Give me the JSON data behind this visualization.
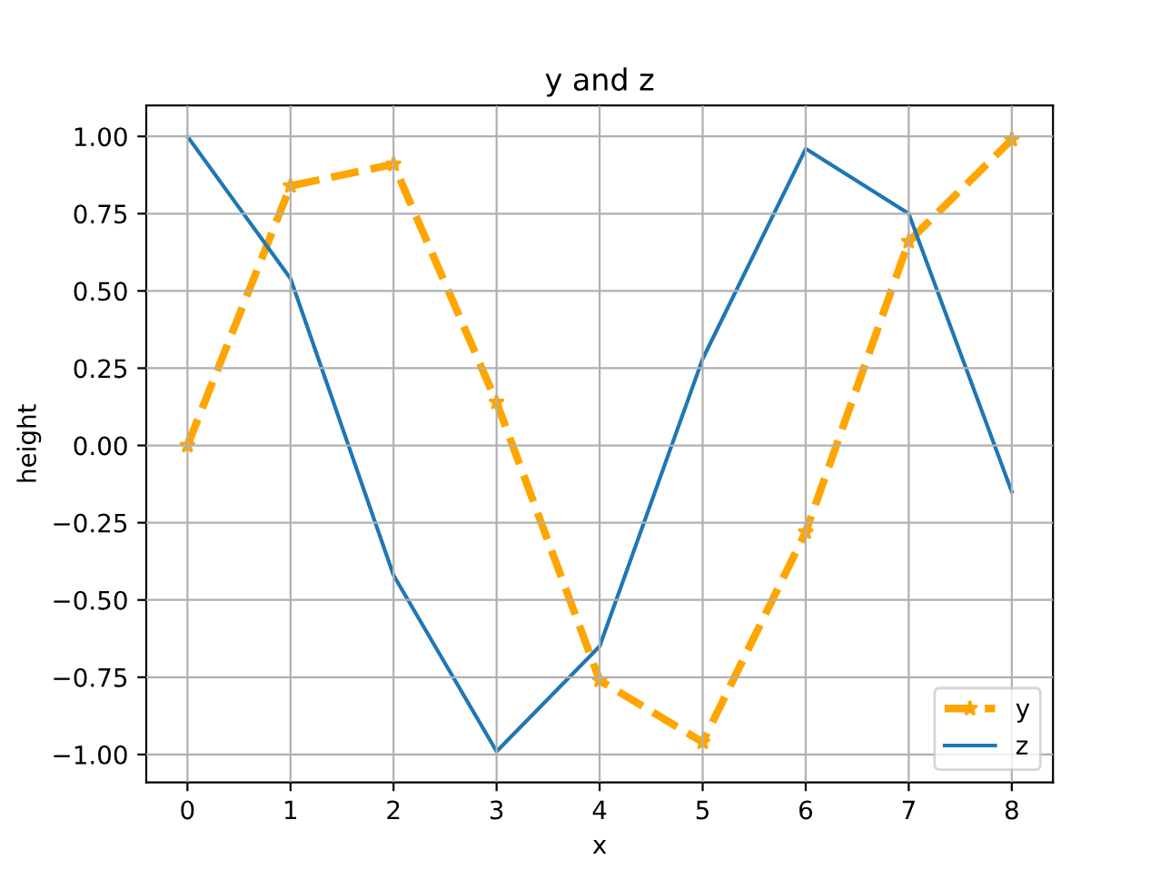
{
  "chart_data": {
    "type": "line",
    "title": "y and z",
    "xlabel": "x",
    "ylabel": "height",
    "x": [
      0,
      1,
      2,
      3,
      4,
      5,
      6,
      7,
      8
    ],
    "series": [
      {
        "name": "y",
        "color": "#ffa500",
        "marker": "star",
        "line_style": "dashed",
        "values": [
          0.0,
          0.84,
          0.91,
          0.14,
          -0.76,
          -0.96,
          -0.28,
          0.66,
          0.99
        ]
      },
      {
        "name": "z",
        "color": "#1f77b4",
        "marker": "none",
        "line_style": "solid",
        "values": [
          1.0,
          0.54,
          -0.42,
          -0.99,
          -0.65,
          0.28,
          0.96,
          0.75,
          -0.15
        ]
      }
    ],
    "xlim": [
      -0.4,
      8.4
    ],
    "ylim": [
      -1.09,
      1.1
    ],
    "xticks": [
      0,
      1,
      2,
      3,
      4,
      5,
      6,
      7,
      8
    ],
    "yticks": [
      {
        "value": -1.0,
        "label": "−1.00"
      },
      {
        "value": -0.75,
        "label": "−0.75"
      },
      {
        "value": -0.5,
        "label": "−0.50"
      },
      {
        "value": -0.25,
        "label": "−0.25"
      },
      {
        "value": 0.0,
        "label": "0.00"
      },
      {
        "value": 0.25,
        "label": "0.25"
      },
      {
        "value": 0.5,
        "label": "0.50"
      },
      {
        "value": 0.75,
        "label": "0.75"
      },
      {
        "value": 1.0,
        "label": "1.00"
      }
    ],
    "grid": true,
    "legend": "bottom right"
  }
}
